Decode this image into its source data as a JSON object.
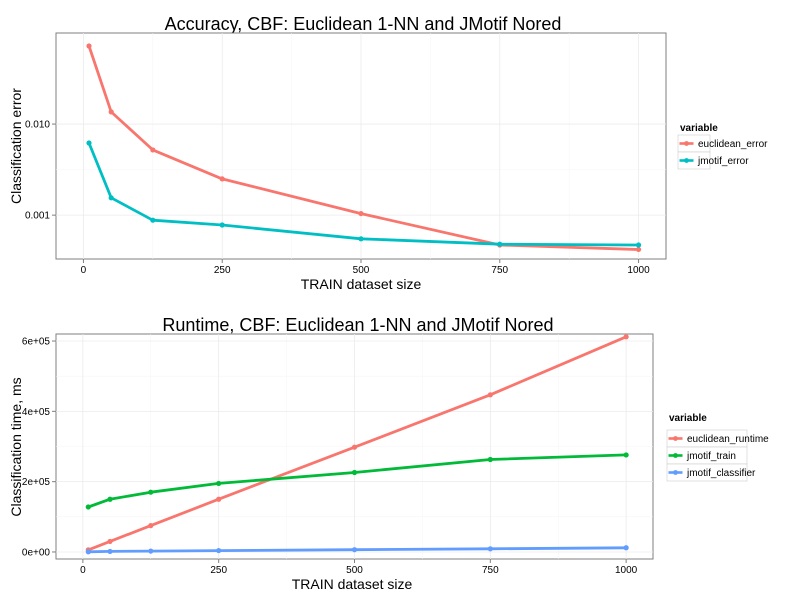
{
  "chart_data": [
    {
      "type": "line",
      "title": "Accuracy, CBF: Euclidean 1-NN and JMotif Nored",
      "xlabel": "TRAIN dataset size",
      "ylabel": "Classification error",
      "x_scale": "linear",
      "y_scale": "log10",
      "xlim": [
        0,
        1000
      ],
      "ylim": [
        0.00033,
        0.1
      ],
      "x_ticks": [
        0,
        250,
        500,
        750,
        1000
      ],
      "x_tick_labels": [
        "0",
        "250",
        "500",
        "750",
        "1000"
      ],
      "y_ticks": [
        0.001,
        0.01
      ],
      "y_tick_labels": [
        "0.001",
        "0.010"
      ],
      "grid": true,
      "legend_position": "right",
      "legend_title": "variable",
      "x": [
        10,
        50,
        125,
        250,
        500,
        750,
        1000
      ],
      "series": [
        {
          "name": "euclidean_error",
          "color": "#F8766D",
          "values": [
            0.072,
            0.0136,
            0.0052,
            0.0025,
            0.00104,
            0.00047,
            0.00042
          ]
        },
        {
          "name": "jmotif_error",
          "color": "#00BFC4",
          "values": [
            0.0062,
            0.00155,
            0.00088,
            0.00078,
            0.00055,
            0.00048,
            0.00047
          ]
        }
      ]
    },
    {
      "type": "line",
      "title": "Runtime, CBF: Euclidean 1-NN and JMotif Nored",
      "xlabel": "TRAIN dataset size",
      "ylabel": "Classification time, ms",
      "x_scale": "linear",
      "y_scale": "linear",
      "xlim": [
        0,
        1000
      ],
      "ylim": [
        -20000,
        620000
      ],
      "x_ticks": [
        0,
        250,
        500,
        750,
        1000
      ],
      "x_tick_labels": [
        "0",
        "250",
        "500",
        "750",
        "1000"
      ],
      "y_ticks": [
        0,
        200000,
        400000,
        600000
      ],
      "y_tick_labels": [
        "0e+00",
        "2e+05",
        "4e+05",
        "6e+05"
      ],
      "grid": true,
      "legend_position": "right",
      "legend_title": "variable",
      "x": [
        10,
        50,
        125,
        250,
        500,
        750,
        1000
      ],
      "series": [
        {
          "name": "euclidean_runtime",
          "color": "#F8766D",
          "values": [
            6000,
            30000,
            75000,
            150000,
            298000,
            447000,
            612000
          ]
        },
        {
          "name": "jmotif_train",
          "color": "#00BA38",
          "values": [
            128000,
            150000,
            170000,
            195000,
            226000,
            263000,
            276000
          ]
        },
        {
          "name": "jmotif_classifier",
          "color": "#619CFF",
          "values": [
            500,
            1500,
            2500,
            4000,
            6500,
            9000,
            12000
          ]
        }
      ]
    }
  ]
}
